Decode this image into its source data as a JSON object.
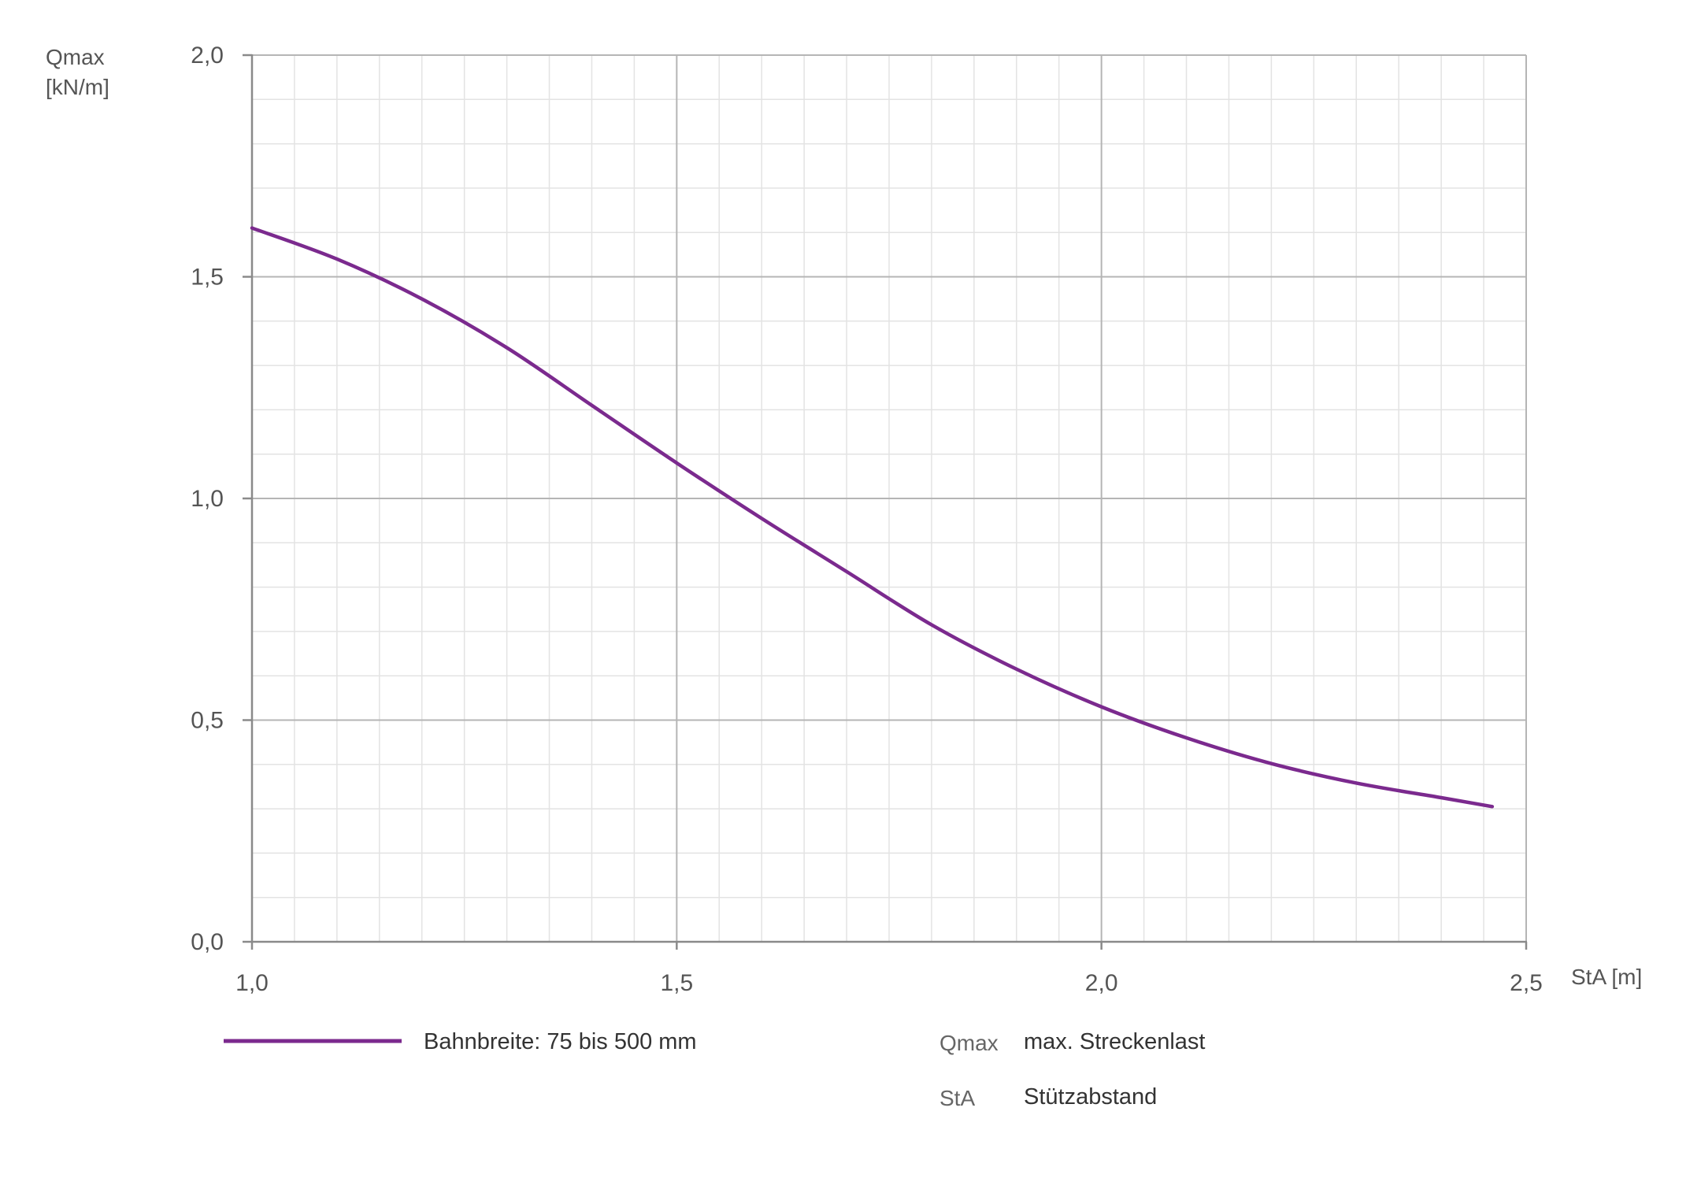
{
  "chart_data": {
    "type": "line",
    "title": "",
    "ylabel_line1": "Qmax",
    "ylabel_line2": "[kN/m]",
    "xlabel": "StA [m]",
    "xlim": [
      1.0,
      2.5
    ],
    "ylim": [
      0.0,
      2.0
    ],
    "x_ticks": [
      "1,0",
      "1,5",
      "2,0",
      "2,5"
    ],
    "y_ticks": [
      "0,0",
      "0,5",
      "1,0",
      "1,5",
      "2,0"
    ],
    "grid": true,
    "legend_position": "bottom",
    "series": [
      {
        "name": "Bahnbreite: 75 bis 500 mm",
        "color": "#7b2a8e",
        "x": [
          1.0,
          1.1,
          1.2,
          1.3,
          1.4,
          1.5,
          1.6,
          1.7,
          1.8,
          1.9,
          2.0,
          2.1,
          2.2,
          2.3,
          2.4,
          2.46
        ],
        "y": [
          1.61,
          1.54,
          1.45,
          1.34,
          1.21,
          1.08,
          0.955,
          0.835,
          0.715,
          0.615,
          0.53,
          0.46,
          0.402,
          0.358,
          0.325,
          0.305
        ]
      }
    ],
    "abbreviations": [
      {
        "abbr": "Qmax",
        "text": "max. Streckenlast"
      },
      {
        "abbr": "StA",
        "text": "Stützabstand"
      }
    ]
  }
}
